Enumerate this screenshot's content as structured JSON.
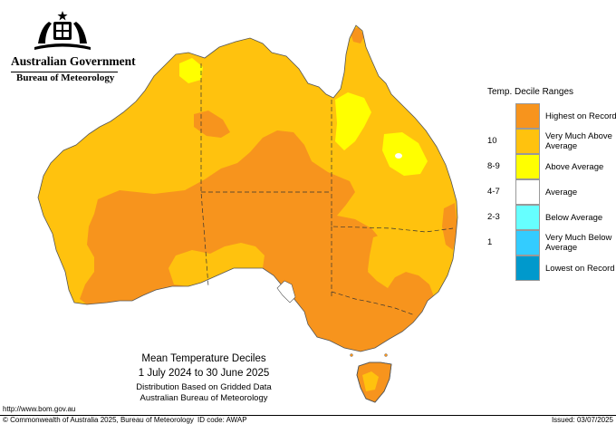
{
  "header": {
    "government": "Australian Government",
    "agency": "Bureau of Meteorology"
  },
  "map": {
    "colors": {
      "highest": "#f7941d",
      "very_much_above": "#ffc20e",
      "above": "#ffff00",
      "average": "#ffffff",
      "below": "#66ffff",
      "very_much_below": "#33ccff",
      "lowest": "#0099cc"
    }
  },
  "legend": {
    "title": "Temp. Decile Ranges",
    "items": [
      {
        "range": "",
        "label": "Highest on Record",
        "color": "#f7941d"
      },
      {
        "range": "10",
        "label": "Very Much Above Average",
        "color": "#ffc20e"
      },
      {
        "range": "8-9",
        "label": "Above Average",
        "color": "#ffff00"
      },
      {
        "range": "4-7",
        "label": "Average",
        "color": "#ffffff"
      },
      {
        "range": "2-3",
        "label": "Below Average",
        "color": "#66ffff"
      },
      {
        "range": "1",
        "label": "Very Much Below Average",
        "color": "#33ccff"
      },
      {
        "range": "",
        "label": "Lowest on Record",
        "color": "#0099cc"
      }
    ]
  },
  "caption": {
    "title": "Mean Temperature Deciles",
    "dates": "1 July 2024 to 30 June 2025",
    "line1": "Distribution Based on Gridded Data",
    "line2": "Australian Bureau of Meteorology"
  },
  "footer": {
    "url": "http://www.bom.gov.au",
    "copyright": "© Commonwealth of Australia 2025, Bureau of Meteorology",
    "id_code": "ID code: AWAP",
    "issued": "Issued: 03/07/2025"
  }
}
